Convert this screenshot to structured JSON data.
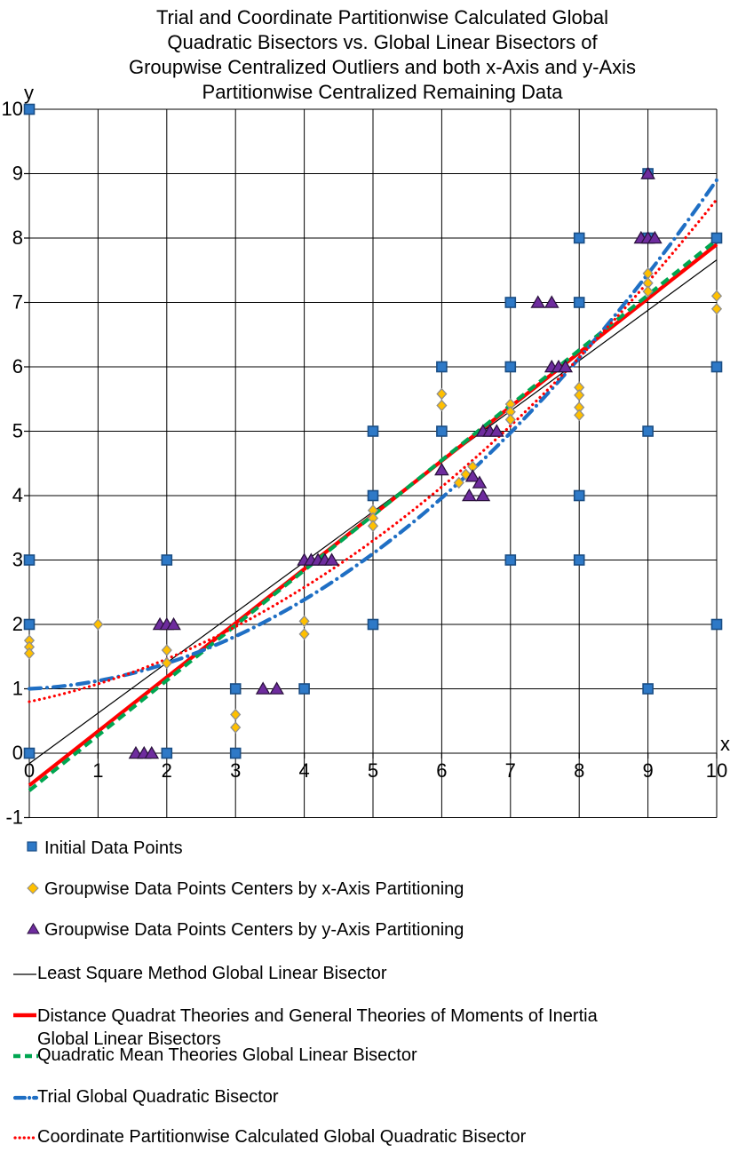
{
  "title_lines": [
    "Trial and Coordinate Partitionwise Calculated Global",
    "Quadratic Bisectors vs. Global Linear Bisectors of",
    "Groupwise Centralized Outliers and both x-Axis and y-Axis",
    "Partitionwise Centralized Remaining Data"
  ],
  "colors": {
    "text": "#000000",
    "grid": "#000000",
    "marker_blue": "#2E79C7",
    "marker_blue_border": "#1A4E85",
    "diamond_fill": "#FFC000",
    "diamond_border": "#8E8E8E",
    "triangle_fill": "#6E2C9E",
    "triangle_border": "#2B123F",
    "line_black": "#000000",
    "line_red": "#FF0000",
    "line_green": "#00A651",
    "line_blue": "#1F6FC4"
  },
  "chart_data": {
    "type": "scatter",
    "title": "Trial and Coordinate Partitionwise Calculated Global Quadratic Bisectors vs. Global Linear Bisectors of Groupwise Centralized Outliers and both x-Axis and y-Axis Partitionwise Centralized Remaining Data",
    "xlabel": "x",
    "ylabel": "y",
    "xlim": [
      0,
      10
    ],
    "ylim": [
      -1,
      10
    ],
    "grid": true,
    "legend_position": "bottom",
    "x_ticks": [
      0,
      1,
      2,
      3,
      4,
      5,
      6,
      7,
      8,
      9,
      10
    ],
    "y_ticks": [
      10,
      9,
      8,
      7,
      6,
      5,
      4,
      3,
      2,
      1,
      0,
      -1
    ],
    "scatter_series": [
      {
        "name": "Initial Data Points",
        "marker": "square",
        "color": "#2E79C7",
        "border": "#1A4E85",
        "points": [
          [
            0,
            10
          ],
          [
            0,
            3
          ],
          [
            0,
            2
          ],
          [
            0,
            0
          ],
          [
            2,
            3
          ],
          [
            2,
            0
          ],
          [
            3,
            1
          ],
          [
            3,
            0
          ],
          [
            4,
            1
          ],
          [
            5,
            5
          ],
          [
            5,
            4
          ],
          [
            5,
            2
          ],
          [
            6,
            6
          ],
          [
            6,
            5
          ],
          [
            7,
            7
          ],
          [
            7,
            6
          ],
          [
            7,
            3
          ],
          [
            8,
            8
          ],
          [
            8,
            7
          ],
          [
            8,
            4
          ],
          [
            8,
            3
          ],
          [
            9,
            9
          ],
          [
            9,
            8
          ],
          [
            9,
            5
          ],
          [
            9,
            1
          ],
          [
            10,
            8
          ],
          [
            10,
            6
          ],
          [
            10,
            2
          ]
        ]
      },
      {
        "name": "Groupwise Data Points Centers by x-Axis Partitioning",
        "marker": "diamond",
        "color": "#FFC000",
        "border": "#8E8E8E",
        "points": [
          [
            0,
            1.75
          ],
          [
            0,
            1.65
          ],
          [
            0,
            1.55
          ],
          [
            1,
            2
          ],
          [
            2,
            1.6
          ],
          [
            2,
            1.4
          ],
          [
            3,
            0.6
          ],
          [
            3,
            0.4
          ],
          [
            4,
            2.05
          ],
          [
            4,
            1.85
          ],
          [
            5,
            3.77
          ],
          [
            5,
            3.65
          ],
          [
            5,
            3.53
          ],
          [
            6,
            5.58
          ],
          [
            6,
            5.4
          ],
          [
            6.25,
            4.2
          ],
          [
            6.35,
            4.33
          ],
          [
            6.45,
            4.45
          ],
          [
            7,
            5.42
          ],
          [
            7,
            5.3
          ],
          [
            7,
            5.18
          ],
          [
            8,
            5.68
          ],
          [
            8,
            5.56
          ],
          [
            8,
            5.37
          ],
          [
            8,
            5.25
          ],
          [
            9,
            7.45
          ],
          [
            9,
            7.3
          ],
          [
            9,
            7.17
          ],
          [
            10,
            7.1
          ],
          [
            10,
            6.9
          ]
        ]
      },
      {
        "name": "Groupwise Data Points Centers by y-Axis Partitioning",
        "marker": "triangle",
        "color": "#6E2C9E",
        "border": "#2B123F",
        "points": [
          [
            1.55,
            0
          ],
          [
            1.67,
            0
          ],
          [
            1.78,
            0
          ],
          [
            1.9,
            2
          ],
          [
            2,
            2
          ],
          [
            2.1,
            2
          ],
          [
            3.4,
            1
          ],
          [
            3.6,
            1
          ],
          [
            4,
            3
          ],
          [
            4.1,
            3
          ],
          [
            4.2,
            3
          ],
          [
            4.3,
            3
          ],
          [
            4.4,
            3
          ],
          [
            6,
            4.4
          ],
          [
            6.45,
            4.3
          ],
          [
            6.55,
            4.2
          ],
          [
            6.4,
            4
          ],
          [
            6.6,
            4
          ],
          [
            6.6,
            5
          ],
          [
            6.7,
            5
          ],
          [
            6.8,
            5
          ],
          [
            7.4,
            7
          ],
          [
            7.6,
            7
          ],
          [
            7.6,
            6
          ],
          [
            7.7,
            6
          ],
          [
            7.8,
            6
          ],
          [
            8.9,
            8
          ],
          [
            9,
            8
          ],
          [
            9.1,
            8
          ],
          [
            9,
            9
          ]
        ]
      }
    ],
    "line_series": [
      {
        "name": "Least Square Method Global Linear Bisector",
        "style": "solid",
        "color": "#000000",
        "width": 1.2,
        "points": [
          [
            0,
            -0.16
          ],
          [
            10,
            7.66
          ]
        ]
      },
      {
        "name": "Distance Quadrat Theories and General Theories of Moments of Inertia Global Linear Bisectors",
        "style": "solid",
        "color": "#FF0000",
        "width": 4.2,
        "points": [
          [
            0,
            -0.5
          ],
          [
            10,
            7.9
          ]
        ]
      },
      {
        "name": "Quadratic Mean Theories Global Linear Bisector",
        "style": "dashed",
        "color": "#00A651",
        "width": 4.2,
        "points": [
          [
            0,
            -0.58
          ],
          [
            10,
            7.97
          ]
        ]
      },
      {
        "name": "Trial Global Quadratic Bisector",
        "style": "dashdot",
        "color": "#1F6FC4",
        "width": 4.2,
        "quadratic": {
          "a": 0.074,
          "b": 0.05,
          "c": 1.0
        },
        "x_range": [
          0,
          10
        ]
      },
      {
        "name": "Coordinate Partitionwise Calculated Global Quadratic Bisector",
        "style": "dotted",
        "color": "#FF0000",
        "width": 3.2,
        "quadratic": {
          "a": 0.056,
          "b": 0.22,
          "c": 0.8
        },
        "x_range": [
          0,
          10
        ]
      }
    ]
  },
  "legend": [
    {
      "label": "Initial Data Points"
    },
    {
      "label": "Groupwise Data Points Centers by x-Axis Partitioning"
    },
    {
      "label": "Groupwise Data Points Centers by y-Axis Partitioning"
    },
    {
      "label": "Least Square Method Global Linear Bisector"
    },
    {
      "label_lines": [
        "Distance Quadrat Theories and General Theories of Moments of Inertia",
        "Global Linear Bisectors"
      ]
    },
    {
      "label": "Quadratic Mean Theories Global Linear Bisector"
    },
    {
      "label": "Trial Global Quadratic Bisector"
    },
    {
      "label": "Coordinate Partitionwise Calculated Global Quadratic Bisector"
    }
  ]
}
